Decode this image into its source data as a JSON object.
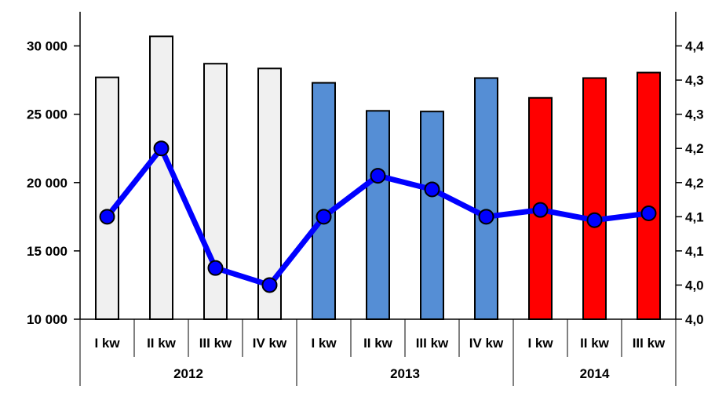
{
  "chart_data": {
    "type": "bar+line",
    "title": "",
    "categories": [
      "I kw",
      "II kw",
      "III kw",
      "IV kw",
      "I kw",
      "II kw",
      "III kw",
      "IV kw",
      "I kw",
      "II kw",
      "III kw"
    ],
    "groups": [
      {
        "label": "2012",
        "count": 4
      },
      {
        "label": "2013",
        "count": 4
      },
      {
        "label": "2014",
        "count": 3
      }
    ],
    "series": [
      {
        "type": "bar",
        "values": [
          27700,
          30700,
          28700,
          28350,
          27300,
          25250,
          25200,
          27650,
          26200,
          27650,
          28050
        ],
        "colors": [
          "#f0f0f0",
          "#f0f0f0",
          "#f0f0f0",
          "#f0f0f0",
          "#558ed5",
          "#558ed5",
          "#558ed5",
          "#558ed5",
          "#ff0000",
          "#ff0000",
          "#ff0000"
        ]
      },
      {
        "type": "line",
        "axis": "right",
        "color": "#0000ff",
        "values": [
          4.15,
          4.25,
          4.075,
          4.05,
          4.15,
          4.21,
          4.19,
          4.15,
          4.16,
          4.145,
          4.155
        ]
      }
    ],
    "yaxis_left": {
      "min": 10000,
      "max": 32500,
      "ticks": [
        10000,
        15000,
        20000,
        25000,
        30000
      ],
      "tick_labels": [
        "10 000",
        "15 000",
        "20 000",
        "25 000",
        "30 000"
      ]
    },
    "yaxis_right": {
      "min": 4.0,
      "max": 4.45,
      "ticks": [
        4.0,
        4.05,
        4.1,
        4.15,
        4.2,
        4.25,
        4.3,
        4.35,
        4.4
      ],
      "tick_labels": [
        "4,0",
        "4,0",
        "4,1",
        "4,1",
        "4,2",
        "4,2",
        "4,3",
        "4,3",
        "4,4"
      ]
    },
    "grid": false,
    "legend": "none"
  }
}
